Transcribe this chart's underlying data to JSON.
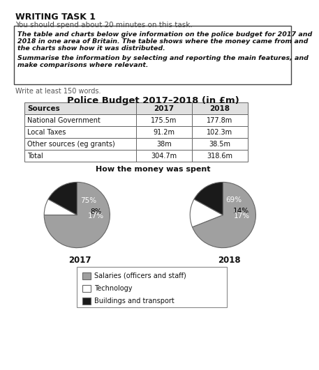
{
  "title_main": "WRITING TASK 1",
  "subtitle": "You should spend about 20 minutes on this task.",
  "box_lines": [
    "The table and charts below give information on the police budget for 2017 and",
    "2018 in one area of Britain. The table shows where the money came from and",
    "the charts show how it was distributed.",
    "",
    "Summarise the information by selecting and reporting the main features, and",
    "make comparisons where relevant."
  ],
  "write_text": "Write at least 150 words.",
  "table_title": "Police Budget 2017–2018 (in £m)",
  "table_headers": [
    "Sources",
    "2017",
    "2018"
  ],
  "table_rows": [
    [
      "National Government",
      "175.5m",
      "177.8m"
    ],
    [
      "Local Taxes",
      "91.2m",
      "102.3m"
    ],
    [
      "Other sources (eg grants)",
      "38m",
      "38.5m"
    ],
    [
      "Total",
      "304.7m",
      "318.6m"
    ]
  ],
  "pie_title": "How the money was spent",
  "pie_2017": [
    75,
    8,
    17
  ],
  "pie_2018": [
    69,
    14,
    17
  ],
  "pie_labels_2017": [
    "75%",
    "8%",
    "17%"
  ],
  "pie_labels_2018": [
    "69%",
    "14%",
    "17%"
  ],
  "pie_colors": [
    "#a0a0a0",
    "#ffffff",
    "#1a1a1a"
  ],
  "pie_label_colors_2017": [
    "white",
    "black",
    "white"
  ],
  "pie_label_colors_2018": [
    "white",
    "black",
    "white"
  ],
  "pie_year_2017": "2017",
  "pie_year_2018": "2018",
  "legend_labels": [
    "Salaries (officers and staff)",
    "Technology",
    "Buildings and transport"
  ],
  "legend_colors": [
    "#a0a0a0",
    "#ffffff",
    "#1a1a1a"
  ],
  "background_color": "#ffffff"
}
